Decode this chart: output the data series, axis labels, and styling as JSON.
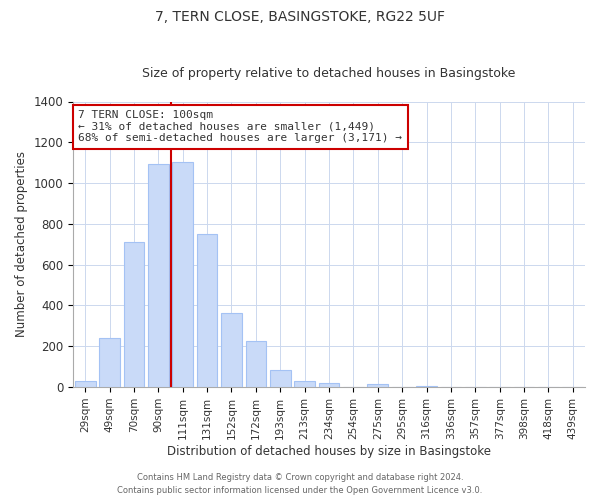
{
  "title": "7, TERN CLOSE, BASINGSTOKE, RG22 5UF",
  "subtitle": "Size of property relative to detached houses in Basingstoke",
  "xlabel": "Distribution of detached houses by size in Basingstoke",
  "ylabel": "Number of detached properties",
  "bar_labels": [
    "29sqm",
    "49sqm",
    "70sqm",
    "90sqm",
    "111sqm",
    "131sqm",
    "152sqm",
    "172sqm",
    "193sqm",
    "213sqm",
    "234sqm",
    "254sqm",
    "275sqm",
    "295sqm",
    "316sqm",
    "336sqm",
    "357sqm",
    "377sqm",
    "398sqm",
    "418sqm",
    "439sqm"
  ],
  "bar_values": [
    30,
    240,
    710,
    1095,
    1105,
    750,
    365,
    225,
    85,
    30,
    20,
    0,
    15,
    0,
    5,
    0,
    0,
    0,
    0,
    0,
    0
  ],
  "bar_color": "#c9daf8",
  "bar_edge_color": "#a4c2f4",
  "vline_color": "#cc0000",
  "vline_x": 3.5,
  "ylim_max": 1400,
  "yticks": [
    0,
    200,
    400,
    600,
    800,
    1000,
    1200,
    1400
  ],
  "annotation_text": "7 TERN CLOSE: 100sqm\n← 31% of detached houses are smaller (1,449)\n68% of semi-detached houses are larger (3,171) →",
  "annotation_box_color": "#ffffff",
  "annotation_box_edge": "#cc0000",
  "footer_line1": "Contains HM Land Registry data © Crown copyright and database right 2024.",
  "footer_line2": "Contains public sector information licensed under the Open Government Licence v3.0.",
  "background_color": "#ffffff",
  "grid_color": "#ccd8ee",
  "title_fontsize": 10,
  "subtitle_fontsize": 9,
  "axis_label_fontsize": 8.5,
  "tick_fontsize": 7.5
}
